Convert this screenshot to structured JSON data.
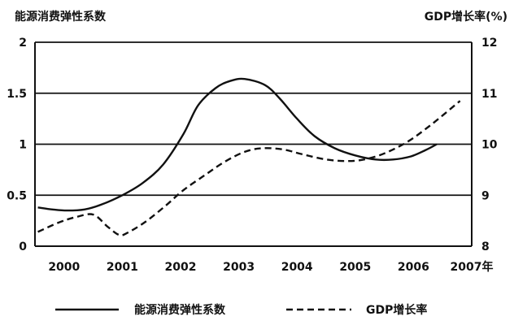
{
  "chart_data": {
    "type": "line",
    "left_axis_label": "能源消费弹性系数",
    "right_axis_label": "GDP增长率(%)",
    "x_ticks": [
      "2000",
      "2001",
      "2002",
      "2003",
      "2004",
      "2005",
      "2006",
      "2007年"
    ],
    "y_left_ticks": [
      "0",
      "0.5",
      "1",
      "1.5",
      "2"
    ],
    "y_right_ticks": [
      "8",
      "9",
      "10",
      "11",
      "12"
    ],
    "y_left_range": [
      0,
      2
    ],
    "y_right_range": [
      8,
      12
    ],
    "x_range": [
      1999.5,
      2007
    ],
    "grid": "horizontal at 0.5, 1, 1.5",
    "legend_position": "bottom",
    "series": [
      {
        "name": "能源消费弹性系数",
        "axis": "left",
        "line_style": "solid",
        "x": [
          1999.55,
          1999.8,
          2000.05,
          2000.35,
          2000.65,
          2001.0,
          2001.35,
          2001.7,
          2002.05,
          2002.3,
          2002.6,
          2002.85,
          2003.1,
          2003.45,
          2003.7,
          2004.0,
          2004.3,
          2004.65,
          2005.0,
          2005.35,
          2005.65,
          2005.95,
          2006.2,
          2006.4
        ],
        "values": [
          0.38,
          0.36,
          0.35,
          0.36,
          0.41,
          0.5,
          0.62,
          0.8,
          1.1,
          1.38,
          1.55,
          1.62,
          1.64,
          1.58,
          1.45,
          1.25,
          1.08,
          0.96,
          0.89,
          0.85,
          0.85,
          0.88,
          0.94,
          1.0
        ]
      },
      {
        "name": "GDP增长率",
        "axis": "right",
        "line_style": "dashed",
        "x": [
          1999.55,
          1999.9,
          2000.2,
          2000.5,
          2000.75,
          2000.95,
          2001.1,
          2001.4,
          2001.75,
          2002.05,
          2002.4,
          2002.75,
          2003.1,
          2003.4,
          2003.75,
          2004.1,
          2004.5,
          2004.85,
          2005.15,
          2005.5,
          2005.9,
          2006.3,
          2006.8
        ],
        "values": [
          8.28,
          8.46,
          8.57,
          8.62,
          8.38,
          8.22,
          8.27,
          8.48,
          8.8,
          9.1,
          9.38,
          9.65,
          9.85,
          9.92,
          9.9,
          9.8,
          9.7,
          9.67,
          9.7,
          9.82,
          10.05,
          10.38,
          10.85
        ]
      }
    ]
  }
}
